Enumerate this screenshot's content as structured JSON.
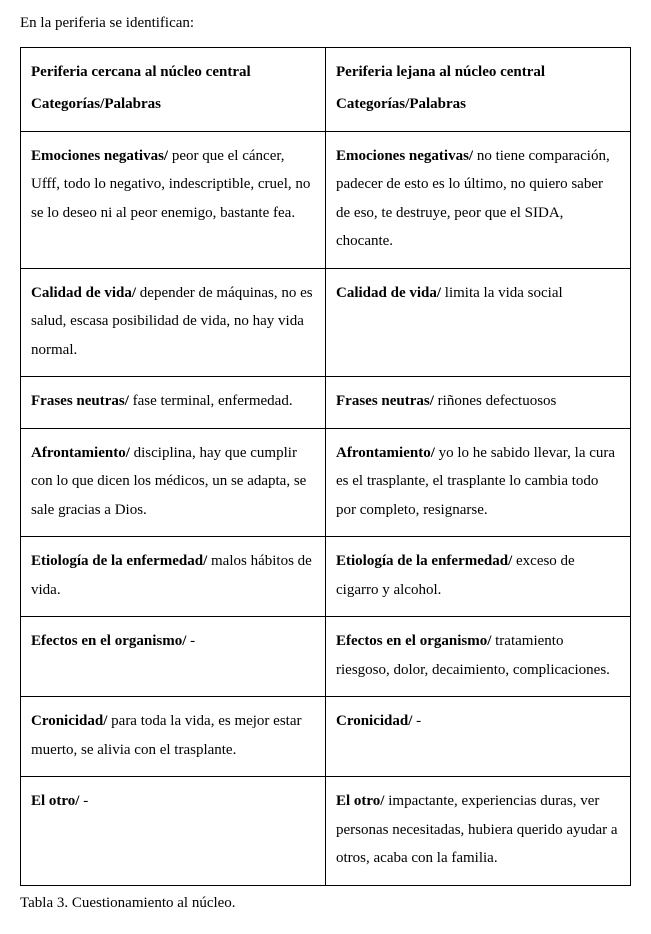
{
  "intro_text": "En la periferia se identifican:",
  "header": {
    "left_line1": "Periferia cercana al núcleo central",
    "left_line2": "Categorías/Palabras",
    "right_line1": "Periferia lejana al núcleo central",
    "right_line2": "Categorías/Palabras"
  },
  "rows": [
    {
      "left_cat": "Emociones negativas/",
      "left_txt": " peor que el cáncer, Ufff, todo lo negativo, indescriptible, cruel, no se lo deseo ni al peor enemigo, bastante fea.",
      "right_cat": "Emociones negativas/",
      "right_txt": " no tiene comparación, padecer de esto es lo último, no quiero saber de eso, te destruye, peor que el SIDA, chocante."
    },
    {
      "left_cat": "Calidad de vida/",
      "left_txt": " depender de máquinas, no es salud, escasa posibilidad de vida, no hay vida normal.",
      "right_cat": "Calidad de vida/",
      "right_txt": " limita la vida social"
    },
    {
      "left_cat": "Frases neutras/",
      "left_txt": " fase terminal, enfermedad.",
      "right_cat": "Frases neutras/",
      "right_txt": " riñones defectuosos"
    },
    {
      "left_cat": "Afrontamiento/",
      "left_txt": " disciplina, hay que cumplir con lo que dicen los médicos, un se adapta, se sale gracias a Dios.",
      "right_cat": "Afrontamiento/",
      "right_txt": " yo lo he sabido llevar, la cura es el trasplante, el trasplante lo cambia todo por completo, resignarse."
    },
    {
      "left_cat": "Etiología de la enfermedad/",
      "left_txt": " malos hábitos de vida.",
      "right_cat": "Etiología de la enfermedad/",
      "right_txt": " exceso de cigarro y alcohol."
    },
    {
      "left_cat": "Efectos en el organismo/",
      "left_txt": " -",
      "right_cat": "Efectos en el organismo/",
      "right_txt": " tratamiento riesgoso, dolor, decaimiento, complicaciones."
    },
    {
      "left_cat": "Cronicidad/",
      "left_txt": " para toda la vida, es mejor estar muerto, se alivia con el trasplante.",
      "right_cat": "Cronicidad/",
      "right_txt": " -"
    },
    {
      "left_cat": "El otro/",
      "left_txt": " -",
      "right_cat": "El otro/",
      "right_txt": " impactante, experiencias duras, ver personas necesitadas, hubiera querido ayudar a otros, acaba con la familia."
    }
  ],
  "caption": "Tabla 3. Cuestionamiento al núcleo."
}
